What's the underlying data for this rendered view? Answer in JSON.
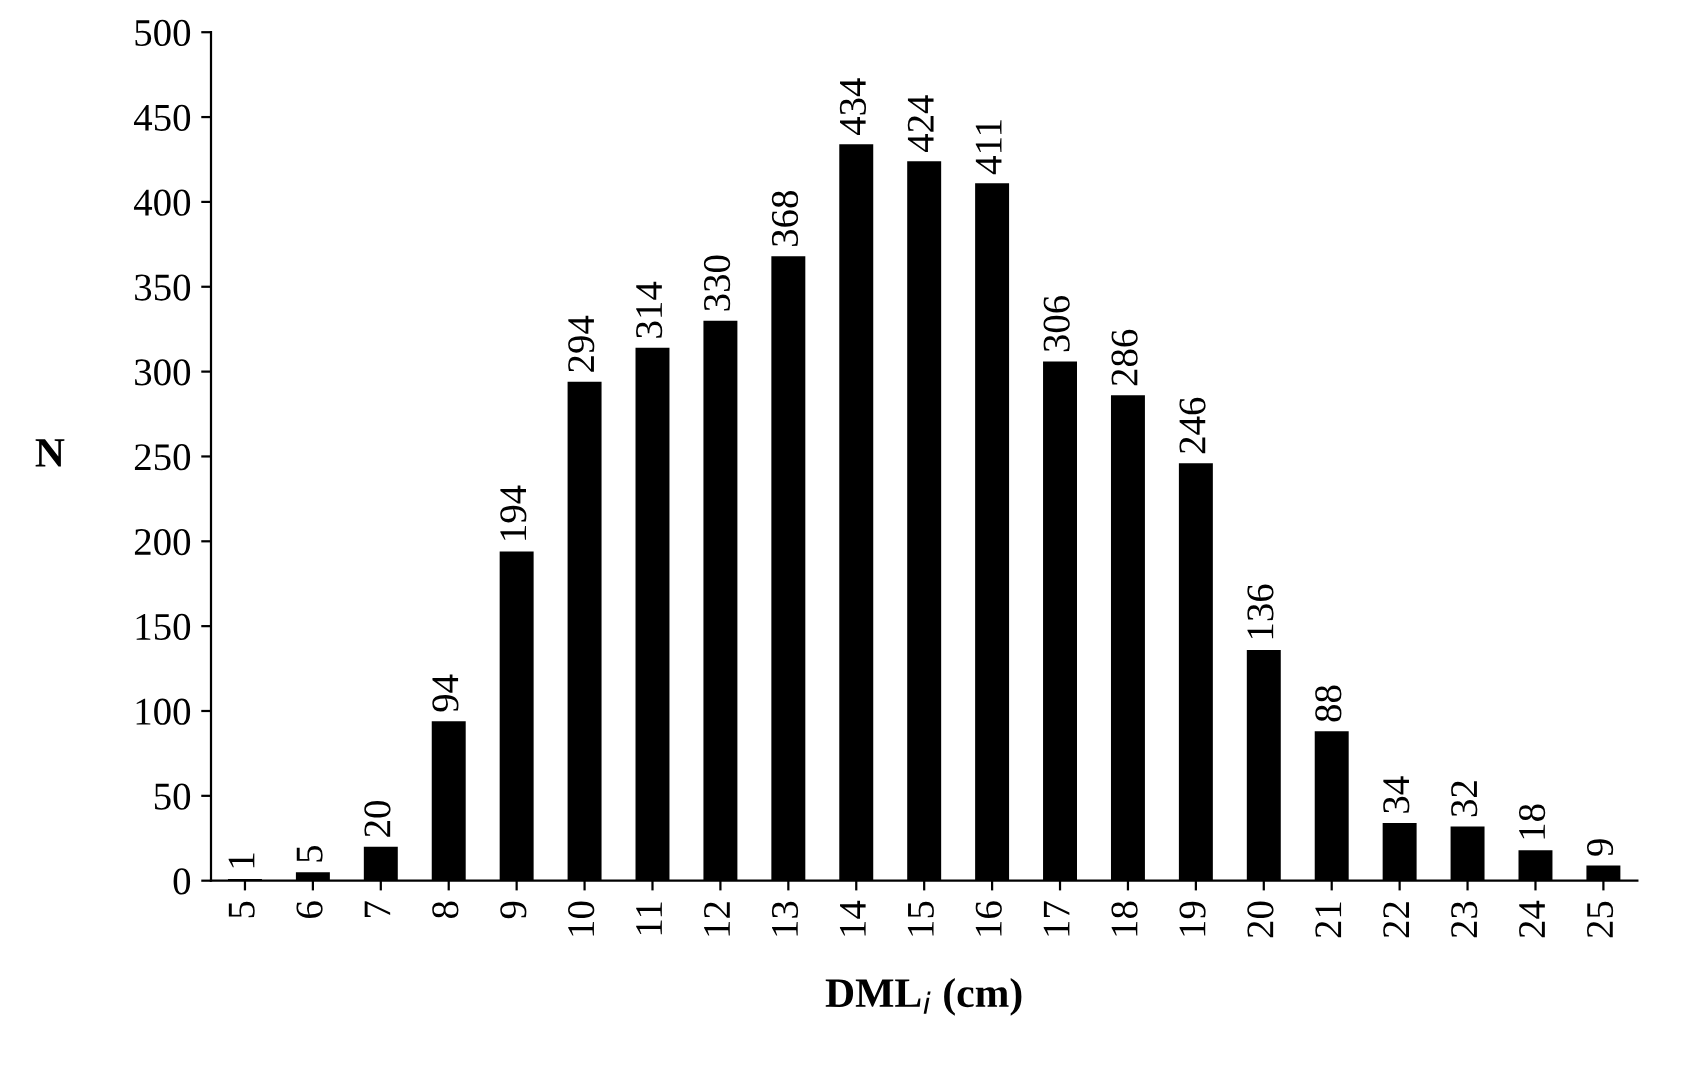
{
  "chart_data": {
    "type": "bar",
    "xlabel": "DML$_{i}$ (cm)",
    "ylabel": "N",
    "categories": [
      "5",
      "6",
      "7",
      "8",
      "9",
      "10",
      "11",
      "12",
      "13",
      "14",
      "15",
      "16",
      "17",
      "18",
      "19",
      "20",
      "21",
      "22",
      "23",
      "24",
      "25"
    ],
    "values": [
      1,
      5,
      20,
      94,
      194,
      294,
      314,
      330,
      368,
      434,
      424,
      411,
      306,
      286,
      246,
      136,
      88,
      34,
      32,
      18,
      9
    ],
    "color": "#000000",
    "ylim": [
      0,
      500
    ],
    "yticks": [
      0,
      50,
      100,
      150,
      200,
      250,
      300,
      350,
      400,
      450,
      500
    ],
    "data_labels": true,
    "grid": false,
    "legend": false
  }
}
